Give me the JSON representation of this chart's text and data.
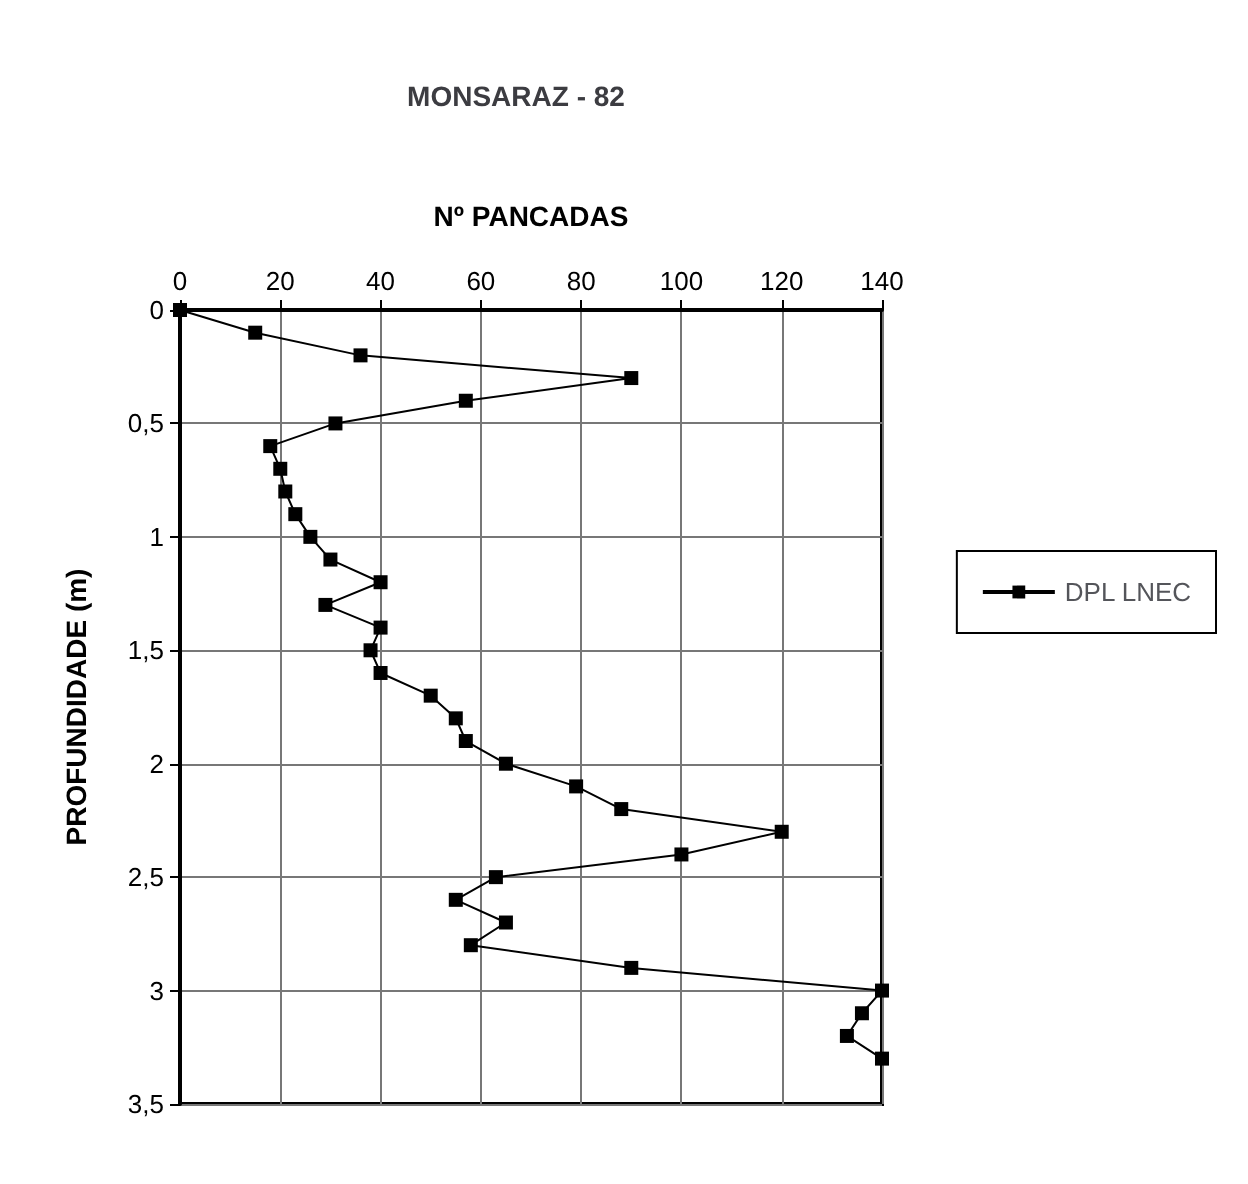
{
  "chart_data": {
    "type": "line",
    "title": "MONSARAZ - 82",
    "xlabel": "Nº PANCADAS",
    "ylabel": "PROFUNDIDADE (m)",
    "x": [
      0,
      15,
      36,
      90,
      57,
      31,
      18,
      20,
      21,
      23,
      26,
      30,
      40,
      29,
      40,
      38,
      40,
      50,
      55,
      57,
      65,
      79,
      88,
      120,
      100,
      63,
      55,
      65,
      58,
      90,
      140,
      136,
      133,
      140
    ],
    "series": [
      {
        "name": "DPL LNEC",
        "color": "#000000",
        "values": [
          0,
          0.1,
          0.2,
          0.3,
          0.4,
          0.5,
          0.6,
          0.7,
          0.8,
          0.9,
          1.0,
          1.1,
          1.2,
          1.3,
          1.4,
          1.5,
          1.6,
          1.7,
          1.8,
          1.9,
          2.0,
          2.1,
          2.2,
          2.3,
          2.4,
          2.5,
          2.6,
          2.7,
          2.8,
          2.9,
          3.0,
          3.1,
          3.2,
          3.3
        ]
      }
    ],
    "xlim": [
      0,
      140
    ],
    "xticks": [
      0,
      20,
      40,
      60,
      80,
      100,
      120,
      140
    ],
    "ylim": [
      3.5,
      0
    ],
    "yticks": [
      0,
      {
        "value": 0.5,
        "label": "0,5"
      },
      1,
      {
        "value": 1.5,
        "label": "1,5"
      },
      2,
      {
        "value": 2.5,
        "label": "2,5"
      },
      3,
      {
        "value": 3.5,
        "label": "3,5"
      }
    ],
    "grid": true,
    "legend": "right",
    "marker": "square",
    "line_style": "solid"
  }
}
